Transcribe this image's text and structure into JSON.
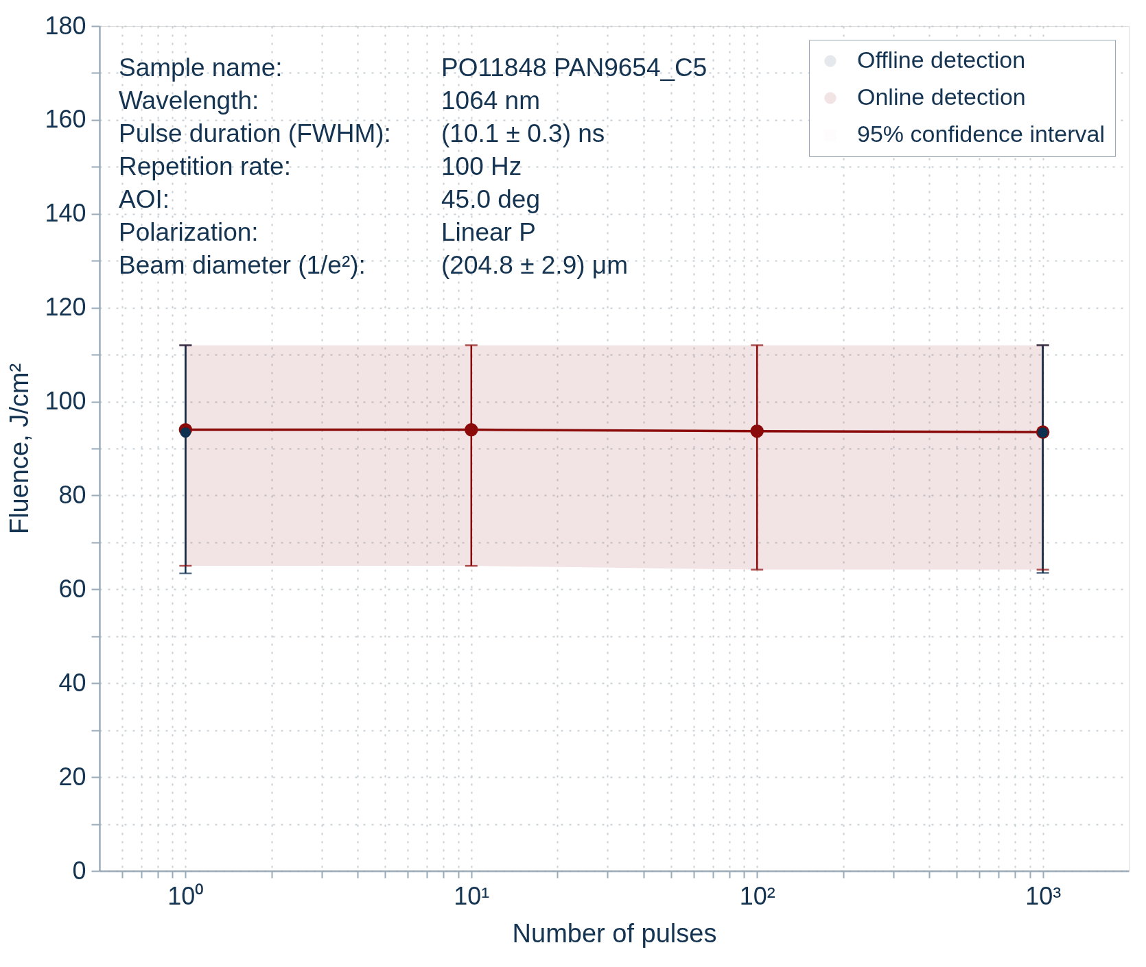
{
  "chart_data": {
    "type": "line",
    "xlabel": "Number of pulses",
    "ylabel": "Fluence, J/cm²",
    "log": "x",
    "grid": true,
    "legend": "top right",
    "xlim": [
      0.5,
      2000
    ],
    "ylim": [
      0,
      180
    ],
    "xticks": [
      {
        "value": 0.6,
        "label": null
      },
      {
        "value": 0.7,
        "label": null
      },
      {
        "value": 0.8,
        "label": null
      },
      {
        "value": 0.9,
        "label": null
      },
      {
        "value": 1,
        "label": "10⁰"
      },
      {
        "value": 2,
        "label": null
      },
      {
        "value": 3,
        "label": null
      },
      {
        "value": 4,
        "label": null
      },
      {
        "value": 5,
        "label": null
      },
      {
        "value": 6,
        "label": null
      },
      {
        "value": 7,
        "label": null
      },
      {
        "value": 8,
        "label": null
      },
      {
        "value": 9,
        "label": null
      },
      {
        "value": 10,
        "label": "10¹"
      },
      {
        "value": 20,
        "label": null
      },
      {
        "value": 30,
        "label": null
      },
      {
        "value": 40,
        "label": null
      },
      {
        "value": 50,
        "label": null
      },
      {
        "value": 60,
        "label": null
      },
      {
        "value": 70,
        "label": null
      },
      {
        "value": 80,
        "label": null
      },
      {
        "value": 90,
        "label": null
      },
      {
        "value": 100,
        "label": "10²"
      },
      {
        "value": 200,
        "label": null
      },
      {
        "value": 300,
        "label": null
      },
      {
        "value": 400,
        "label": null
      },
      {
        "value": 500,
        "label": null
      },
      {
        "value": 600,
        "label": null
      },
      {
        "value": 700,
        "label": null
      },
      {
        "value": 800,
        "label": null
      },
      {
        "value": 900,
        "label": null
      },
      {
        "value": 1000,
        "label": "10³"
      }
    ],
    "yticks": [
      0,
      {
        "value": 10,
        "label": null
      },
      20,
      {
        "value": 30,
        "label": null
      },
      40,
      {
        "value": 50,
        "label": null
      },
      60,
      {
        "value": 70,
        "label": null
      },
      80,
      {
        "value": 90,
        "label": null
      },
      100,
      {
        "value": 110,
        "label": null
      },
      120,
      {
        "value": 130,
        "label": null
      },
      140,
      {
        "value": 150,
        "label": null
      },
      160,
      {
        "value": 170,
        "label": null
      },
      180
    ],
    "annotations": [
      "Sample name:",
      "PO11848  PAN9654_C5",
      "Wavelength:",
      "1064 nm",
      "Pulse duration (FWHM):",
      "(10.1 ± 0.3) ns",
      "Repetition rate:",
      "100 Hz",
      "AOI:",
      "45.0 deg",
      "Polarization:",
      "Linear P",
      "Beam diameter (1/e²):",
      "(204.8 ± 2.9) μm",
      "95% confidence interval"
    ],
    "series": [
      {
        "name": "Offline detection",
        "type": "scatter",
        "marker": "circle",
        "color": "#0e3150",
        "x": [
          1,
          1000
        ],
        "values": [
          93.4,
          93.4
        ],
        "errors": [
          [
            63.4,
            112
          ],
          [
            63.5,
            112
          ]
        ]
      },
      {
        "name": "Online detection",
        "marker": "circle",
        "color": "#8b0a0a",
        "x": [
          1,
          10,
          100,
          1000
        ],
        "values": [
          94,
          94,
          93.7,
          93.5
        ],
        "errors": [
          [
            65,
            112
          ],
          [
            65,
            112
          ],
          [
            64.2,
            112
          ],
          [
            64.2,
            112
          ]
        ],
        "lower": [
          65,
          65,
          64.2,
          64.2
        ],
        "upper": [
          112,
          112,
          112,
          112
        ]
      }
    ]
  }
}
